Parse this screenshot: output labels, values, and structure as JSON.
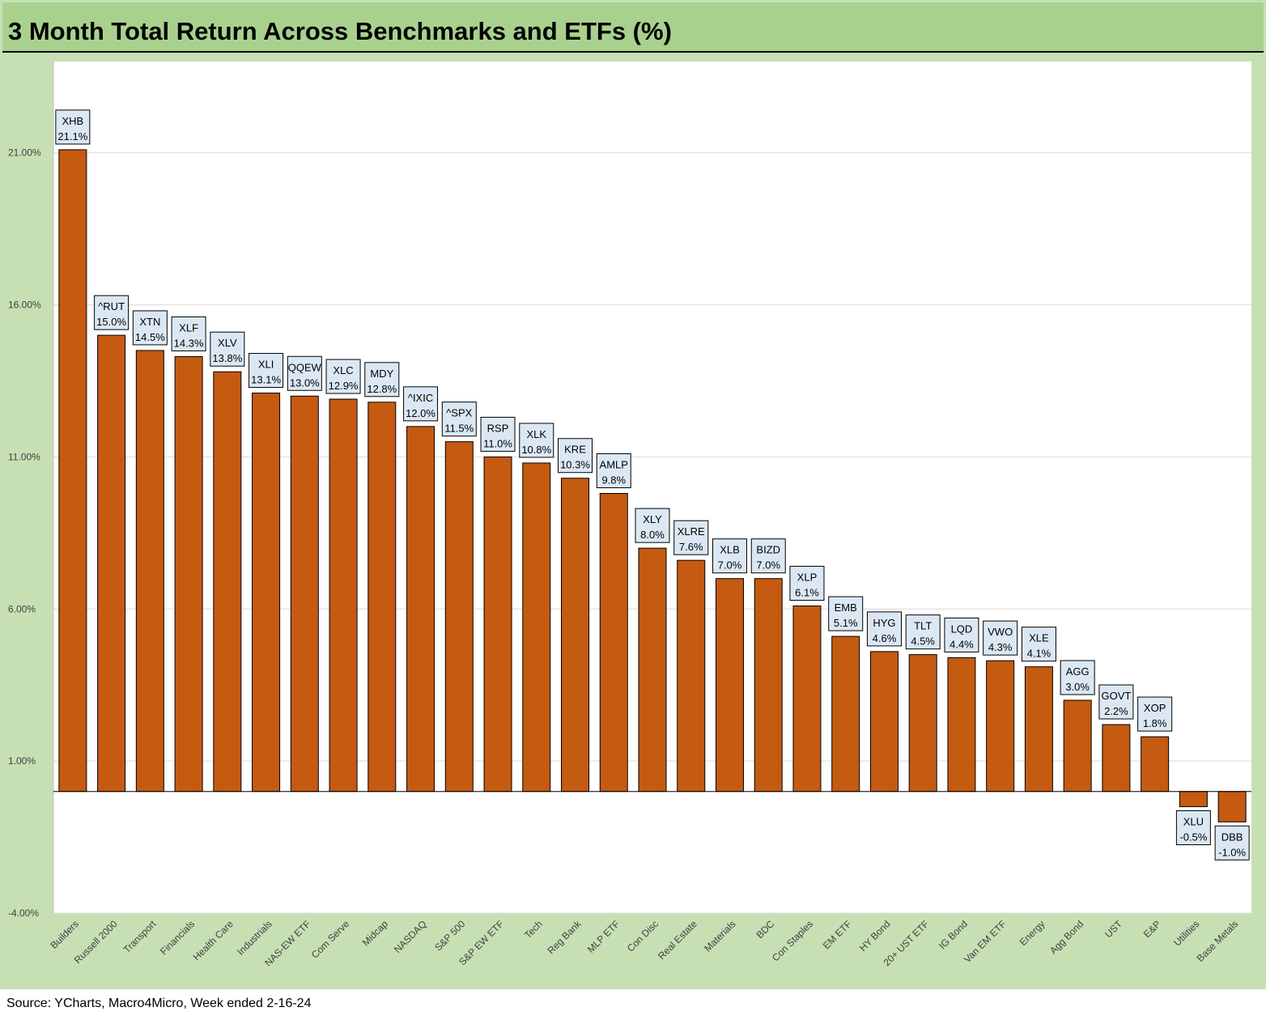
{
  "title": "3 Month Total Return Across Benchmarks and ETFs (%)",
  "source": "Source: YCharts, Macro4Micro, Week ended 2-16-24",
  "colors": {
    "bar": "#c55a11",
    "frame": "#c6e0b4",
    "title_bar": "#a9d18e",
    "label_box": "#dbe8f4"
  },
  "chart_data": {
    "type": "bar",
    "title": "3 Month Total Return Across Benchmarks and ETFs (%)",
    "xlabel": "",
    "ylabel": "",
    "ylim": [
      -4,
      24
    ],
    "yticks": [
      21,
      16,
      11,
      6,
      1,
      -4
    ],
    "ytick_labels": [
      "21.00%",
      "16.00%",
      "11.00%",
      "6.00%",
      "1.00%",
      "-4.00%"
    ],
    "grid": true,
    "categories": [
      "Builders",
      "Russell 2000",
      "Transport",
      "Financials",
      "Health Care",
      "Industrials",
      "NAS-EW ETF",
      "Com Serve",
      "Midcap",
      "NASDAQ",
      "S&P 500",
      "S&P EW ETF",
      "Tech",
      "Reg Bank",
      "MLP ETF",
      "Con Disc",
      "Real Estate",
      "Materials",
      "BDC",
      "Con Staples",
      "EM ETF",
      "HY Bond",
      "20+ UST ETF",
      "IG Bond",
      "Van EM ETF",
      "Energy",
      "Agg Bond",
      "UST",
      "E&P",
      "Utilities",
      "Base Metals"
    ],
    "tickers": [
      "XHB",
      "^RUT",
      "XTN",
      "XLF",
      "XLV",
      "XLI",
      "QQEW",
      "XLC",
      "MDY",
      "^IXIC",
      "^SPX",
      "RSP",
      "XLK",
      "KRE",
      "AMLP",
      "XLY",
      "XLRE",
      "XLB",
      "BIZD",
      "XLP",
      "EMB",
      "HYG",
      "TLT",
      "LQD",
      "VWO",
      "XLE",
      "AGG",
      "GOVT",
      "XOP",
      "XLU",
      "DBB"
    ],
    "values": [
      21.1,
      15.0,
      14.5,
      14.3,
      13.8,
      13.1,
      13.0,
      12.9,
      12.8,
      12.0,
      11.5,
      11.0,
      10.8,
      10.3,
      9.8,
      8.0,
      7.6,
      7.0,
      7.0,
      6.1,
      5.1,
      4.6,
      4.5,
      4.4,
      4.3,
      4.1,
      3.0,
      2.2,
      1.8,
      -0.5,
      -1.0
    ],
    "value_labels": [
      "21.1%",
      "15.0%",
      "14.5%",
      "14.3%",
      "13.8%",
      "13.1%",
      "13.0%",
      "12.9%",
      "12.8%",
      "12.0%",
      "11.5%",
      "11.0%",
      "10.8%",
      "10.3%",
      "9.8%",
      "8.0%",
      "7.6%",
      "7.0%",
      "7.0%",
      "6.1%",
      "5.1%",
      "4.6%",
      "4.5%",
      "4.4%",
      "4.3%",
      "4.1%",
      "3.0%",
      "2.2%",
      "1.8%",
      "-0.5%",
      "-1.0%"
    ]
  }
}
